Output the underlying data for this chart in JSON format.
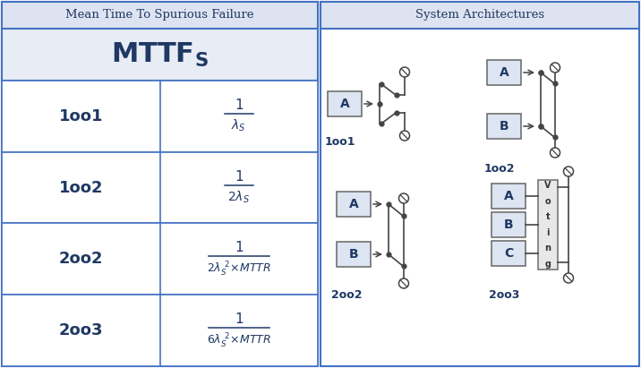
{
  "title_left": "Mean Time To Spurious Failure",
  "title_right": "System Architectures",
  "bg_header": "#dde3f0",
  "bg_table_row": "#ffffff",
  "bg_mttfs": "#e8ecf5",
  "bg_right": "#f0f3fa",
  "border_color": "#4472c4",
  "text_color": "#1f3864",
  "box_color_light": "#dde5f2",
  "box_color_grey": "#e0e0e0",
  "voting_color": "#e8e8e8",
  "line_color": "#444444",
  "rows": [
    "1oo1",
    "1oo2",
    "2oo2",
    "2oo3"
  ],
  "formulas_num": [
    "1",
    "1",
    "1",
    "1"
  ],
  "formulas_den_plain": [
    "lambda_s",
    "2lambda_s",
    "2lambda_s2_MTTR",
    "6lambda_s2_MTTR"
  ]
}
